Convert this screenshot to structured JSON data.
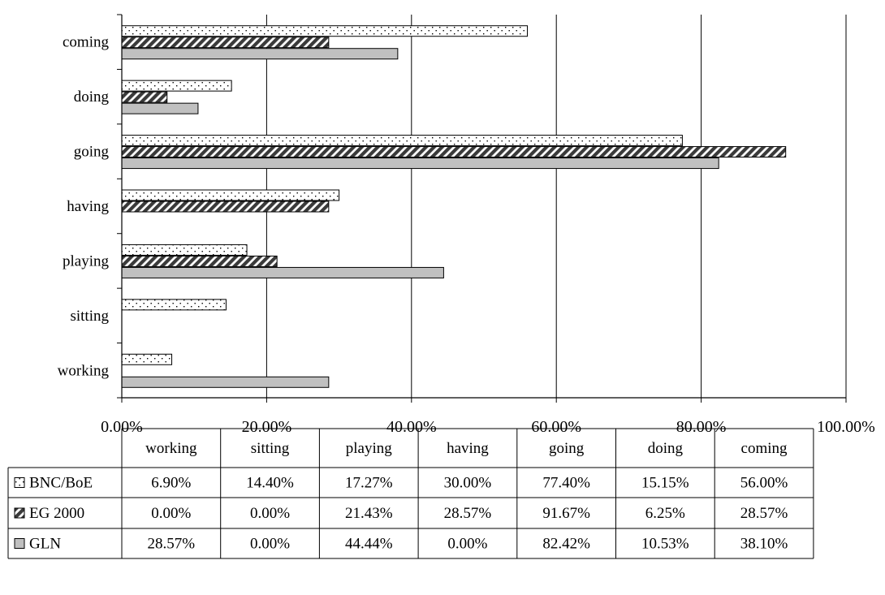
{
  "chart_data": {
    "type": "bar",
    "orientation": "horizontal",
    "categories": [
      "working",
      "sitting",
      "playing",
      "having",
      "going",
      "doing",
      "coming"
    ],
    "series": [
      {
        "name": "BNC/BoE",
        "values": [
          6.9,
          14.4,
          17.27,
          30.0,
          77.4,
          15.15,
          56.0
        ],
        "pattern": "dots",
        "color": "#ffffff"
      },
      {
        "name": "EG 2000",
        "values": [
          0.0,
          0.0,
          21.43,
          28.57,
          91.67,
          6.25,
          28.57
        ],
        "pattern": "hatch",
        "color": "#555555"
      },
      {
        "name": "GLN",
        "values": [
          28.57,
          0.0,
          44.44,
          0.0,
          82.42,
          10.53,
          38.1
        ],
        "pattern": "solid",
        "color": "#c0c0c0"
      }
    ],
    "table": {
      "headers": [
        "working",
        "sitting",
        "playing",
        "having",
        "going",
        "doing",
        "coming"
      ],
      "rows": [
        {
          "label": "BNC/BoE",
          "cells": [
            "6.90%",
            "14.40%",
            "17.27%",
            "30.00%",
            "77.40%",
            "15.15%",
            "56.00%"
          ]
        },
        {
          "label": "EG 2000",
          "cells": [
            "0.00%",
            "0.00%",
            "21.43%",
            "28.57%",
            "91.67%",
            "6.25%",
            "28.57%"
          ]
        },
        {
          "label": "GLN",
          "cells": [
            "28.57%",
            "0.00%",
            "44.44%",
            "0.00%",
            "82.42%",
            "10.53%",
            "38.10%"
          ]
        }
      ]
    },
    "x_ticks": [
      "0.00%",
      "20.00%",
      "40.00%",
      "60.00%",
      "80.00%",
      "100.00%"
    ],
    "xlim": [
      0,
      100
    ],
    "grid": true,
    "legend": "in-table"
  }
}
